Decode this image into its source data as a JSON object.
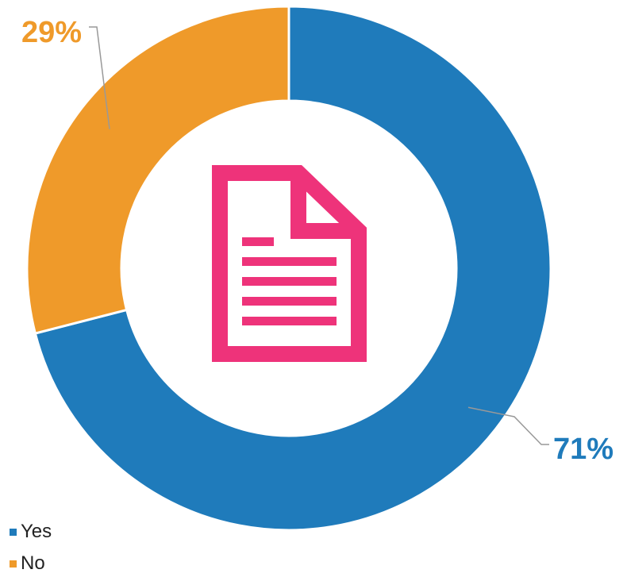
{
  "chart_data": {
    "type": "pie",
    "variant": "donut",
    "categories": [
      "Yes",
      "No"
    ],
    "values": [
      71,
      29
    ],
    "data_labels": [
      "71%",
      "29%"
    ],
    "colors": [
      "#1f7bbb",
      "#ef9a2a"
    ],
    "legend": {
      "placement": "bottom-left",
      "entries": [
        "Yes",
        "No"
      ]
    },
    "center_icon": {
      "name": "document-icon",
      "color": "#ee337a"
    }
  }
}
